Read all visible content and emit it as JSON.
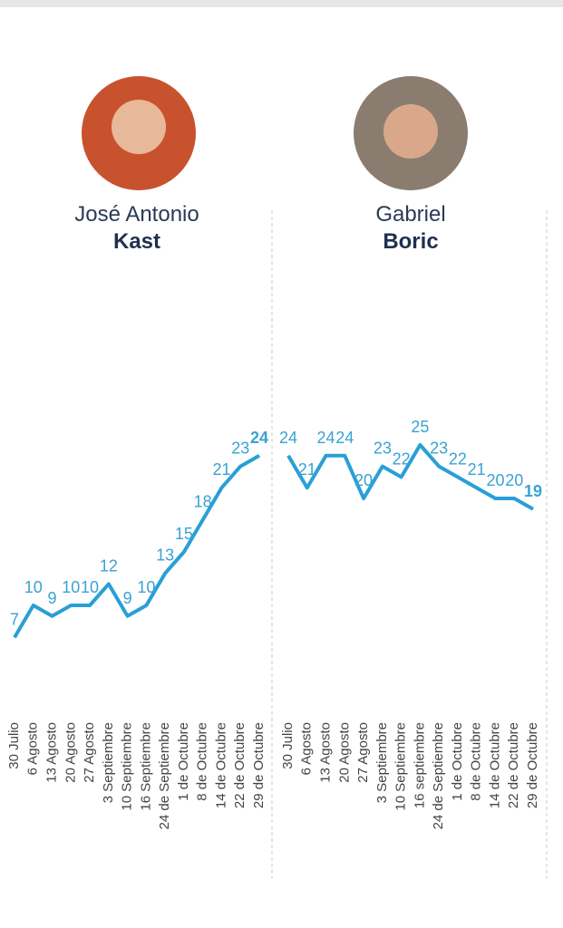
{
  "chart_data": [
    {
      "type": "line",
      "title": "José Antonio",
      "subtitle": "Kast",
      "color": "#2a9fd6",
      "categories": [
        "30 Julio",
        "6 Agosto",
        "13 Agosto",
        "20 Agosto",
        "27 Agosto",
        "3 Septiembre",
        "10 Septiembre",
        "16 Septiembre",
        "24 de Septiembre",
        "1 de Octubre",
        "8 de Octubre",
        "14 de Octubre",
        "22 de Octubre",
        "29 de Octubre"
      ],
      "values": [
        7,
        10,
        9,
        10,
        10,
        12,
        9,
        10,
        13,
        15,
        18,
        21,
        23,
        24
      ]
    },
    {
      "type": "line",
      "title": "Gabriel",
      "subtitle": "Boric",
      "color": "#2a9fd6",
      "categories": [
        "30 Julio",
        "6 Agosto",
        "13 Agosto",
        "20 Agosto",
        "27 Agosto",
        "3 Septiembre",
        "10 Septiembre",
        "16 septiembre",
        "24 de Septiembre",
        "1 de Octubre",
        "8 de Octubre",
        "14 de Octubre",
        "22 de Octubre",
        "29 de Octubre"
      ],
      "values": [
        24,
        21,
        24,
        24,
        20,
        23,
        22,
        25,
        23,
        22,
        21,
        20,
        20,
        19
      ]
    }
  ]
}
